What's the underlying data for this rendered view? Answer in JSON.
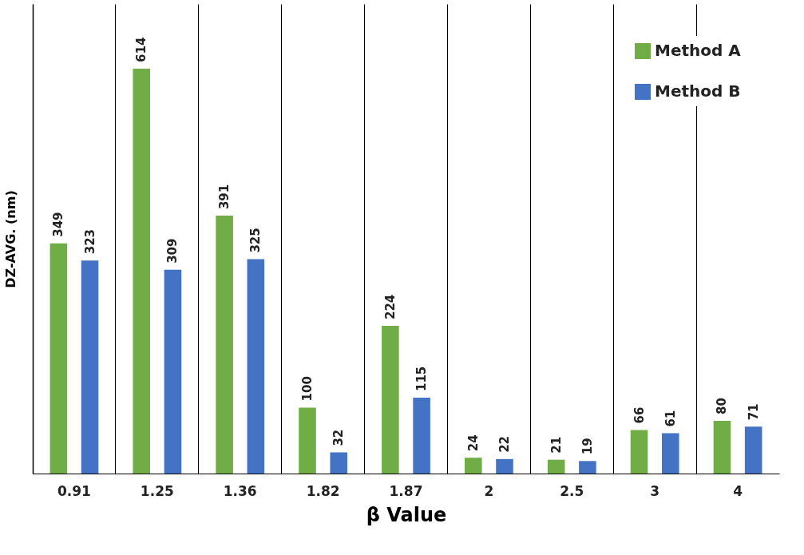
{
  "chart_data": {
    "type": "bar",
    "xlabel": "β Value",
    "ylabel": "DZ-AVG. (nm)",
    "categories": [
      "0.91",
      "1.25",
      "1.36",
      "1.82",
      "1.87",
      "2",
      "2.5",
      "3",
      "4"
    ],
    "series": [
      {
        "name": "Method A",
        "color": "#70ad47",
        "values": [
          349,
          614,
          391,
          100,
          224,
          24,
          21,
          66,
          80
        ]
      },
      {
        "name": "Method B",
        "color": "#4472c4",
        "values": [
          323,
          309,
          325,
          32,
          115,
          22,
          19,
          61,
          71
        ]
      }
    ],
    "ylim": [
      0,
      712
    ],
    "data_labels": true,
    "grid": "x",
    "legend": "top right",
    "tick_labels": "x"
  }
}
